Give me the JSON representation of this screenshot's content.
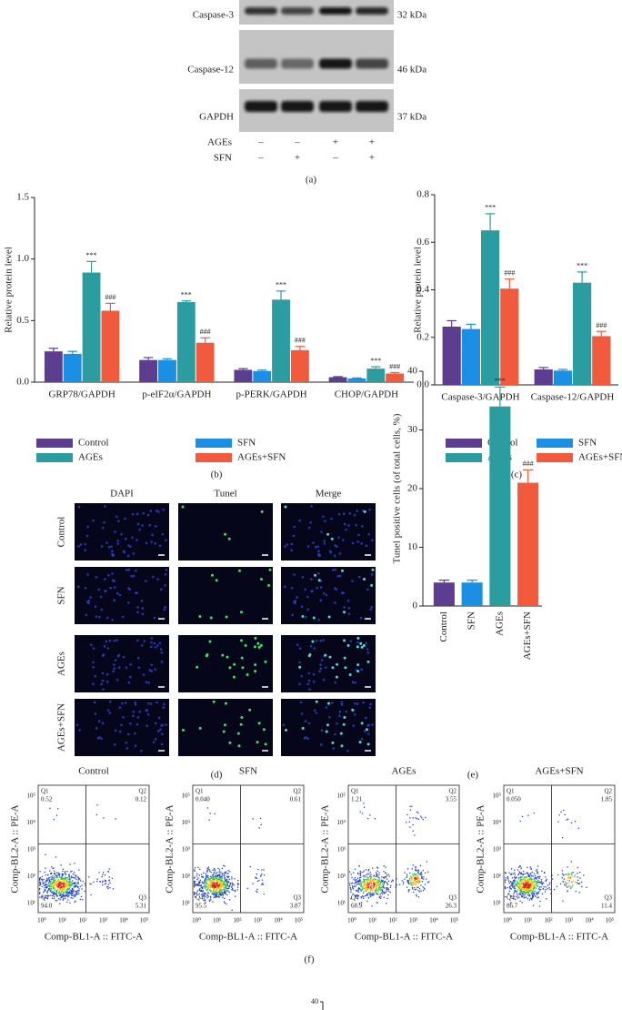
{
  "western_blot": {
    "rows": [
      {
        "label": "Caspase-3",
        "size": "32 kDa"
      },
      {
        "label": "Caspase-12",
        "size": "46 kDa"
      },
      {
        "label": "GAPDH",
        "size": "37 kDa"
      }
    ],
    "treatments": [
      {
        "label": "AGEs",
        "signs": [
          "–",
          "–",
          "+",
          "+"
        ]
      },
      {
        "label": "SFN",
        "signs": [
          "–",
          "+",
          "–",
          "+"
        ]
      }
    ],
    "caption": "(a)"
  },
  "chart_data": [
    {
      "type": "bar",
      "y_label": "Relative protein level",
      "categories": [
        "GRP78/GAPDH",
        "p-eIF2α/GAPDH",
        "p-PERK/GAPDH",
        "CHOP/GAPDH"
      ],
      "ylim": [
        0,
        1.5
      ],
      "yticks": [
        {
          "value": 0,
          "label": "0.0"
        },
        0.5,
        {
          "value": 1,
          "label": "1.0"
        },
        1.5
      ],
      "legend": "below",
      "caption": "(b)",
      "series": [
        {
          "name": "Control",
          "color": "#5c3d8f",
          "values": [
            0.25,
            0.18,
            0.1,
            0.04
          ],
          "errors": [
            0.025,
            0.02,
            0.01,
            0.005
          ]
        },
        {
          "name": "SFN",
          "color": "#1a8fe3",
          "values": [
            0.23,
            0.18,
            0.09,
            0.03
          ],
          "errors": [
            0.02,
            0.01,
            0.008,
            0.004
          ]
        },
        {
          "name": "AGEs",
          "color": "#2b9ca0",
          "values": [
            0.89,
            0.65,
            0.67,
            0.11
          ],
          "errors": [
            0.09,
            0.01,
            0.07,
            0.015
          ],
          "sig_labels": [
            "***",
            "***",
            "***",
            "***"
          ]
        },
        {
          "name": "AGEs+SFN",
          "color": "#f15a3c",
          "values": [
            0.58,
            0.32,
            0.26,
            0.07
          ],
          "errors": [
            0.06,
            0.04,
            0.03,
            0.008
          ],
          "sig_labels": [
            "###",
            "###",
            "###",
            "###"
          ]
        }
      ]
    },
    {
      "type": "bar",
      "y_label": "Relative protein level",
      "categories": [
        "Caspase-3/GAPDH",
        "Caspase-12/GAPDH"
      ],
      "ylim": [
        0,
        0.8
      ],
      "yticks": [
        {
          "value": 0,
          "label": "0.0"
        },
        0.2,
        0.4,
        0.6,
        0.8
      ],
      "legend": "below",
      "caption": "(c)",
      "series": [
        {
          "name": "Control",
          "color": "#5c3d8f",
          "values": [
            0.245,
            0.065
          ],
          "errors": [
            0.025,
            0.008
          ]
        },
        {
          "name": "SFN",
          "color": "#1a8fe3",
          "values": [
            0.235,
            0.06
          ],
          "errors": [
            0.02,
            0.005
          ]
        },
        {
          "name": "AGEs",
          "color": "#2b9ca0",
          "values": [
            0.65,
            0.43
          ],
          "errors": [
            0.07,
            0.045
          ],
          "sig_labels": [
            "***",
            "***"
          ]
        },
        {
          "name": "AGEs+SFN",
          "color": "#f15a3c",
          "values": [
            0.405,
            0.205
          ],
          "errors": [
            0.04,
            0.02
          ],
          "sig_labels": [
            "###",
            "###"
          ]
        }
      ]
    },
    {
      "type": "bar",
      "y_label": "Tunel positive cells (of total cells, %)",
      "categories": [
        "Control",
        "SFN",
        "AGEs",
        "AGEs+SFN"
      ],
      "values": [
        4,
        4,
        34,
        21
      ],
      "errors": [
        0.4,
        0.4,
        3.3,
        2.2
      ],
      "colors": [
        "#5c3d8f",
        "#1a8fe3",
        "#2b9ca0",
        "#f15a3c"
      ],
      "sig_labels": [
        null,
        null,
        "***",
        "###"
      ],
      "ylim": [
        0,
        40
      ],
      "yticks": [
        0,
        10,
        20,
        30,
        40
      ],
      "caption": "(e)"
    }
  ],
  "microscopy": {
    "columns": [
      "DAPI",
      "Tunel",
      "Merge"
    ],
    "rows": [
      "Control",
      "SFN",
      "AGEs",
      "AGEs+SFN"
    ],
    "caption": "(d)"
  },
  "flow_cytometry": {
    "x_label": "Comp-BL1-A :: FITC-A",
    "y_label": "Comp-BL2-A :: PE-A",
    "xticks": [
      "10⁰",
      "10¹",
      "10²",
      "10³",
      "10⁴",
      "10⁵"
    ],
    "yticks": [
      "10¹",
      "10²",
      "10³",
      "10⁴",
      "10⁵"
    ],
    "plots": [
      {
        "title": "Control",
        "quadrants": [
          {
            "name": "Q1",
            "value": "0.52"
          },
          {
            "name": "Q2",
            "value": "0.12"
          },
          {
            "name": "Q3",
            "value": "5.31"
          },
          {
            "name": "Q4",
            "value": "94.0"
          }
        ]
      },
      {
        "title": "SFN",
        "quadrants": [
          {
            "name": "Q1",
            "value": "0.040"
          },
          {
            "name": "Q2",
            "value": "0.61"
          },
          {
            "name": "Q3",
            "value": "3.87"
          },
          {
            "name": "Q4",
            "value": "95.5"
          }
        ]
      },
      {
        "title": "AGEs",
        "quadrants": [
          {
            "name": "Q1",
            "value": "1.21"
          },
          {
            "name": "Q2",
            "value": "3.55"
          },
          {
            "name": "Q3",
            "value": "26.3"
          },
          {
            "name": "Q4",
            "value": "68.9"
          }
        ]
      },
      {
        "title": "AGEs+SFN",
        "quadrants": [
          {
            "name": "Q1",
            "value": "0.050"
          },
          {
            "name": "Q2",
            "value": "1.85"
          },
          {
            "name": "Q3",
            "value": "11.4"
          },
          {
            "name": "Q4",
            "value": "86.7"
          }
        ]
      }
    ],
    "caption": "(f)"
  },
  "next_panel": {
    "tick": "40"
  }
}
